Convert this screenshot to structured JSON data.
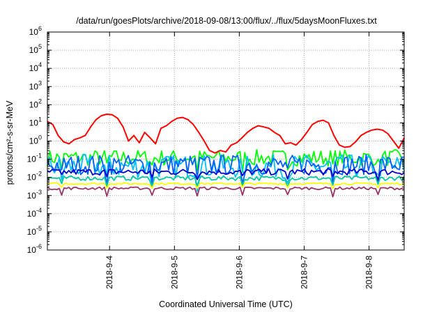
{
  "chart_data": {
    "type": "line",
    "title": "/data/run/goesPlots/archive/2018-09-08/13:00/flux/../flux/5daysMoonFluxes.txt",
    "xlabel": "Coordinated Universal Time (UTC)",
    "ylabel": "protons/cm²-s-sr-MeV",
    "y_scale": "log",
    "ylim": [
      1e-06,
      1000000.0
    ],
    "y_tick_exponents": [
      -6,
      -5,
      -4,
      -3,
      -2,
      -1,
      0,
      1,
      2,
      3,
      4,
      5,
      6
    ],
    "xlim": [
      "2018-09-03 01:00",
      "2018-09-08 13:00"
    ],
    "x_tick_labels": [
      "2018-9-4",
      "2018-9-5",
      "2018-9-6",
      "2018-9-7",
      "2018-9-8"
    ],
    "x_tick_dates": [
      "2018-09-04",
      "2018-09-05",
      "2018-09-06",
      "2018-09-07",
      "2018-09-08"
    ],
    "grid": true,
    "legend": "none",
    "series": [
      {
        "color": "#ff0000",
        "x": [
          "2018-09-03 01:00",
          "2018-09-03 03:00",
          "2018-09-03 05:00",
          "2018-09-03 07:00",
          "2018-09-03 09:00",
          "2018-09-03 11:00",
          "2018-09-03 13:00",
          "2018-09-03 15:00",
          "2018-09-03 17:00",
          "2018-09-03 19:00",
          "2018-09-03 21:00",
          "2018-09-03 23:00",
          "2018-09-04 01:00",
          "2018-09-04 03:00",
          "2018-09-04 05:00",
          "2018-09-04 07:00",
          "2018-09-04 09:00",
          "2018-09-04 11:00",
          "2018-09-04 13:00",
          "2018-09-04 15:00",
          "2018-09-04 17:00",
          "2018-09-04 19:00",
          "2018-09-04 21:00",
          "2018-09-04 23:00",
          "2018-09-05 01:00",
          "2018-09-05 03:00",
          "2018-09-05 05:00",
          "2018-09-05 07:00",
          "2018-09-05 09:00",
          "2018-09-05 11:00",
          "2018-09-05 13:00",
          "2018-09-05 15:00",
          "2018-09-05 17:00",
          "2018-09-05 19:00",
          "2018-09-05 21:00",
          "2018-09-05 23:00",
          "2018-09-06 01:00",
          "2018-09-06 03:00",
          "2018-09-06 05:00",
          "2018-09-06 07:00",
          "2018-09-06 09:00",
          "2018-09-06 11:00",
          "2018-09-06 13:00",
          "2018-09-06 15:00",
          "2018-09-06 17:00",
          "2018-09-06 19:00",
          "2018-09-06 21:00",
          "2018-09-06 23:00",
          "2018-09-07 01:00",
          "2018-09-07 03:00",
          "2018-09-07 05:00",
          "2018-09-07 07:00",
          "2018-09-07 09:00",
          "2018-09-07 11:00",
          "2018-09-07 13:00",
          "2018-09-07 15:00",
          "2018-09-07 17:00",
          "2018-09-07 19:00",
          "2018-09-07 21:00",
          "2018-09-07 23:00",
          "2018-09-08 01:00",
          "2018-09-08 03:00",
          "2018-09-08 05:00",
          "2018-09-08 07:00",
          "2018-09-08 09:00",
          "2018-09-08 11:00",
          "2018-09-08 13:00"
        ],
        "y": [
          12,
          8,
          2,
          0.9,
          0.7,
          1.2,
          1.5,
          2,
          6,
          15,
          25,
          30,
          28,
          18,
          6,
          1,
          2,
          0.8,
          3,
          1.5,
          0.7,
          5,
          7,
          12,
          18,
          20,
          15,
          8,
          3,
          1,
          0.3,
          0.22,
          0.3,
          0.25,
          0.6,
          0.8,
          1.5,
          3,
          5,
          7,
          6,
          5,
          3,
          2,
          0.7,
          0.8,
          0.6,
          1.2,
          3,
          8,
          12,
          14,
          10,
          2,
          0.6,
          0.45,
          0.5,
          0.9,
          2,
          3,
          4,
          4.5,
          4,
          2.5,
          1,
          0.4,
          1.5
        ]
      },
      {
        "color": "#00ff00",
        "base": 0.12,
        "spread": 0.9,
        "dips": 0.35
      },
      {
        "color": "#00bfff",
        "base": 0.04,
        "spread": 1.3,
        "dips": 0.15
      },
      {
        "color": "#0060ff",
        "base": 0.05,
        "spread": 1.1,
        "dips": 0.2
      },
      {
        "color": "#0000c8",
        "base": 0.02,
        "spread": 0.35,
        "dips": 0.5
      },
      {
        "color": "#00c8a0",
        "base": 0.009,
        "spread": 0.25,
        "dips": 0.4
      },
      {
        "color": "#ffff00",
        "base": 0.0045,
        "spread": 0.1,
        "dips": 0.6
      },
      {
        "color": "#993366",
        "base": 0.0025,
        "spread": 0.15,
        "dips": 0.4
      }
    ]
  }
}
